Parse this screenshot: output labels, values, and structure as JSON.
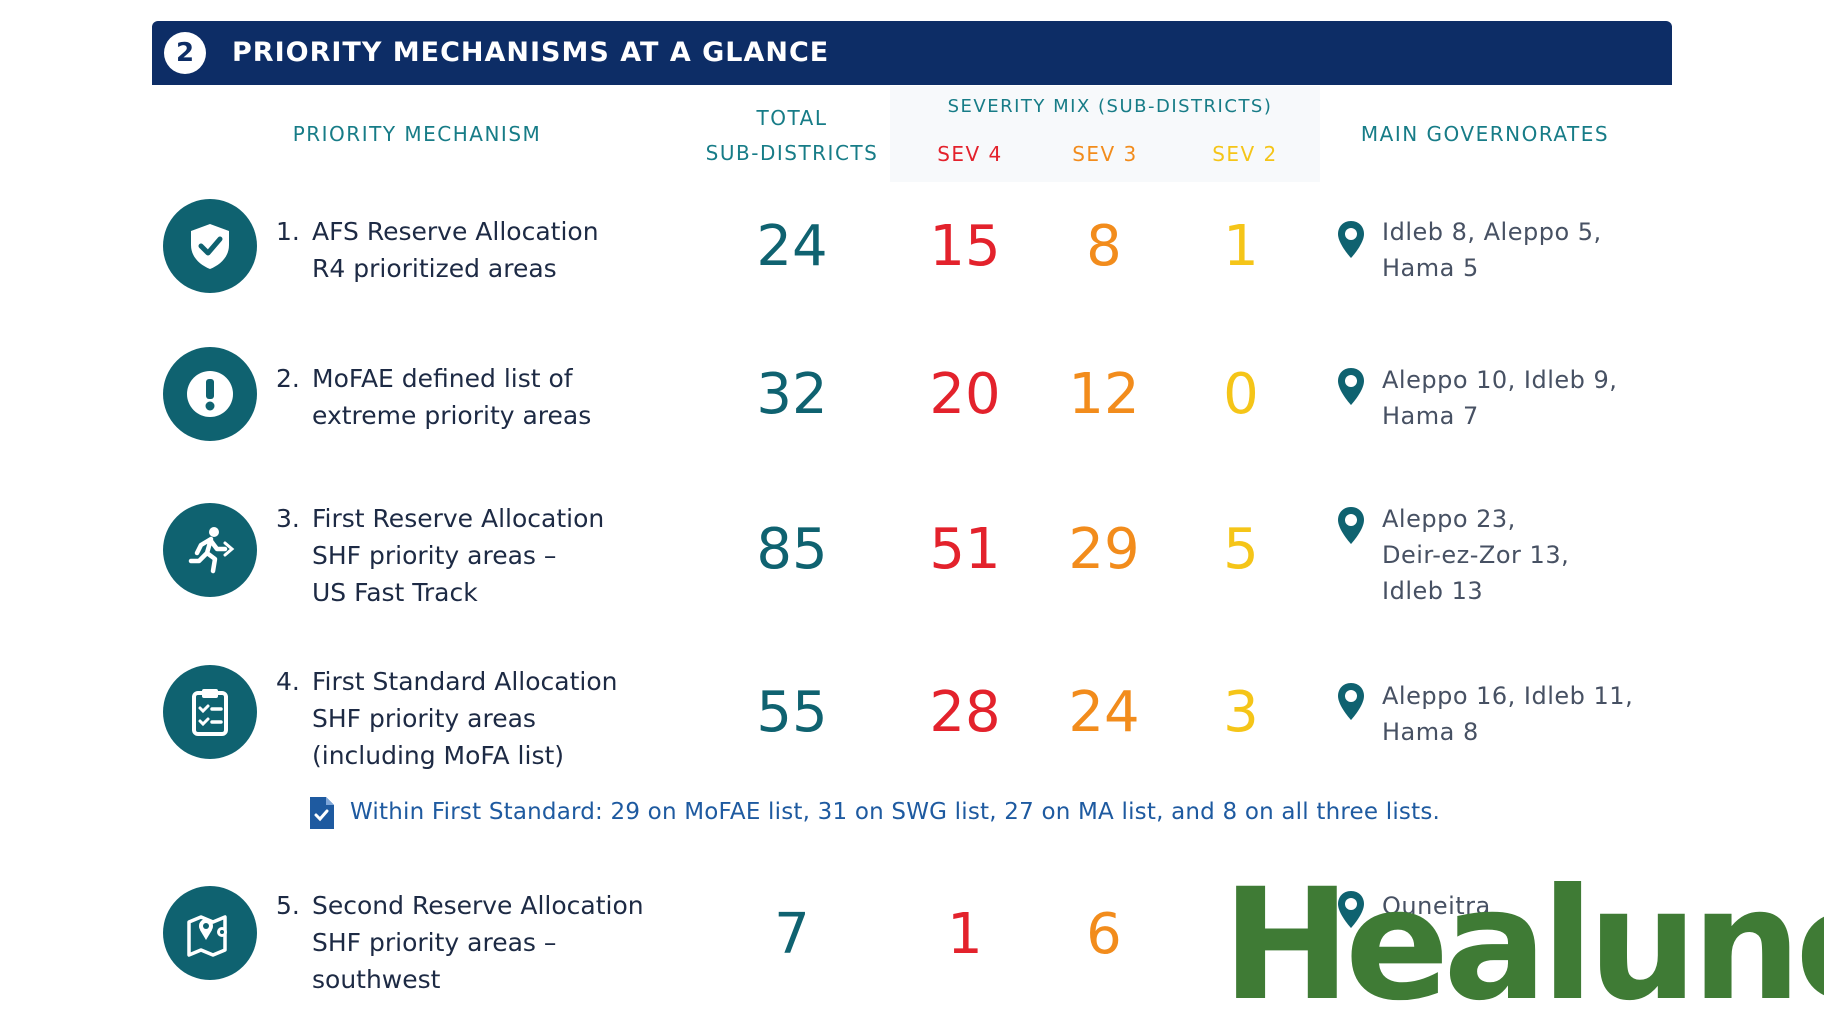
{
  "header": {
    "number": "2",
    "title": "PRIORITY MECHANISMS AT A GLANCE"
  },
  "columns": {
    "mechanism": "PRIORITY MECHANISM",
    "total_line1": "TOTAL",
    "total_line2": "SUB-DISTRICTS",
    "severity_mix": "SEVERITY MIX (SUB-DISTRICTS)",
    "sev4": "SEV 4",
    "sev3": "SEV 3",
    "sev2": "SEV 2",
    "governorates": "MAIN GOVERNORATES"
  },
  "colors": {
    "header_bg": "#0d2d66",
    "teal": "#0f6270",
    "sev4": "#e3222c",
    "sev3": "#f28c1c",
    "sev2": "#f5c518",
    "logo": "#3f7b35"
  },
  "rows": [
    {
      "icon": "shield-check-icon",
      "num": "1.",
      "line1": "AFS Reserve Allocation",
      "line2": "R4 prioritized areas",
      "line3": "",
      "total": "24",
      "sev4": "15",
      "sev3": "8",
      "sev2": "1",
      "gov1": "Idleb 8, Aleppo 5,",
      "gov2": "Hama 5",
      "gov3": ""
    },
    {
      "icon": "exclamation-icon",
      "num": "2.",
      "line1": "MoFAE defined list of",
      "line2": "extreme priority areas",
      "line3": "",
      "total": "32",
      "sev4": "20",
      "sev3": "12",
      "sev2": "0",
      "gov1": "Aleppo 10, Idleb 9,",
      "gov2": "Hama 7",
      "gov3": ""
    },
    {
      "icon": "running-person-icon",
      "num": "3.",
      "line1": "First Reserve Allocation",
      "line2": "SHF priority areas –",
      "line3": "US Fast Track",
      "total": "85",
      "sev4": "51",
      "sev3": "29",
      "sev2": "5",
      "gov1": "Aleppo 23,",
      "gov2": "Deir-ez-Zor 13,",
      "gov3": "Idleb 13"
    },
    {
      "icon": "clipboard-checklist-icon",
      "num": "4.",
      "line1": "First Standard Allocation",
      "line2": "SHF priority areas",
      "line3": "(including MoFA list)",
      "total": "55",
      "sev4": "28",
      "sev3": "24",
      "sev2": "3",
      "gov1": "Aleppo 16, Idleb 11,",
      "gov2": "Hama 8",
      "gov3": ""
    },
    {
      "icon": "map-pin-icon",
      "num": "5.",
      "line1": "Second Reserve Allocation",
      "line2": "SHF priority areas –",
      "line3": "southwest",
      "total": "7",
      "sev4": "1",
      "sev3": "6",
      "sev2": "",
      "gov1": "Quneitra",
      "gov2": "",
      "gov3": ""
    }
  ],
  "note": "Within First Standard: 29 on MoFAE list, 31 on SWG list, 27 on MA list, and 8 on all three lists.",
  "watermark": "Healuno"
}
